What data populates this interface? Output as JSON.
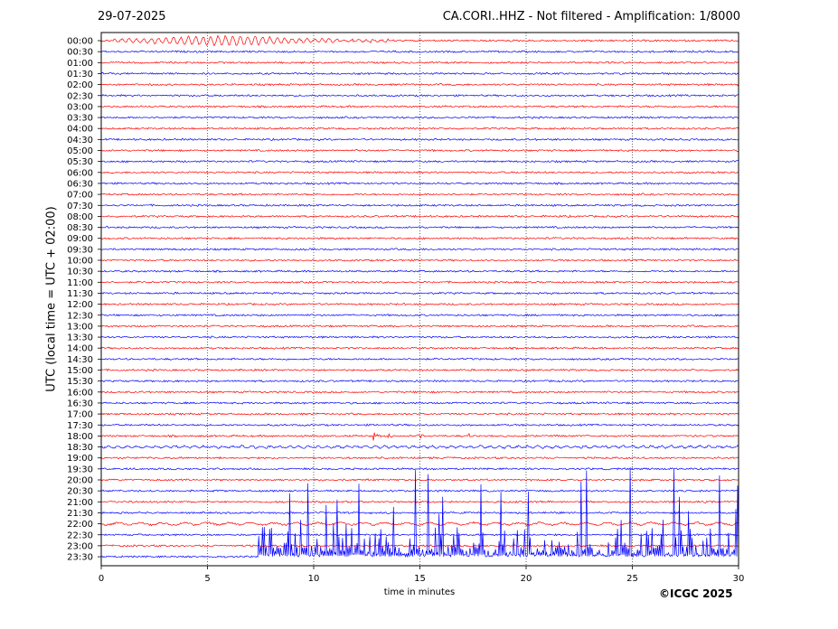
{
  "header": {
    "date": "29-07-2025",
    "title": "CA.CORI..HHZ - Not filtered - Amplification: 1/8000"
  },
  "footer": {
    "copyright": "©ICGC 2025"
  },
  "chart_data": {
    "type": "line",
    "subtype": "helicorder",
    "title": "CA.CORI..HHZ - Not filtered - Amplification: 1/8000",
    "xlabel": "time in minutes",
    "ylabel": "UTC (local time = UTC + 02:00)",
    "xlim": [
      0,
      30
    ],
    "xticks": [
      0,
      5,
      10,
      15,
      20,
      25,
      30
    ],
    "x_gridlines": [
      5,
      10,
      15,
      20,
      25
    ],
    "grid": "vertical dotted",
    "trace_colors": [
      "#ff0000",
      "#0000ff"
    ],
    "rows": [
      "00:00",
      "00:30",
      "01:00",
      "01:30",
      "02:00",
      "02:30",
      "03:00",
      "03:30",
      "04:00",
      "04:30",
      "05:00",
      "05:30",
      "06:00",
      "06:30",
      "07:00",
      "07:30",
      "08:00",
      "08:30",
      "09:00",
      "09:30",
      "10:00",
      "10:30",
      "11:00",
      "11:30",
      "12:00",
      "12:30",
      "13:00",
      "13:30",
      "14:00",
      "14:30",
      "15:00",
      "15:30",
      "16:00",
      "16:30",
      "17:00",
      "17:30",
      "18:00",
      "18:30",
      "19:00",
      "19:30",
      "20:00",
      "20:30",
      "21:00",
      "21:30",
      "22:00",
      "22:30",
      "23:00",
      "23:30"
    ],
    "events": [
      {
        "row": "00:00",
        "start_min": 0.5,
        "end_min": 13.5,
        "peak_min": 5.8,
        "description": "oscillating wave train"
      },
      {
        "row": "18:00",
        "start_min": 12.7,
        "end_min": 17.5,
        "peak_min": 12.8,
        "description": "small local event"
      },
      {
        "row": "23:30",
        "start_min": 7.4,
        "end_min": 30,
        "description": "high-amplitude noise burst"
      }
    ]
  }
}
